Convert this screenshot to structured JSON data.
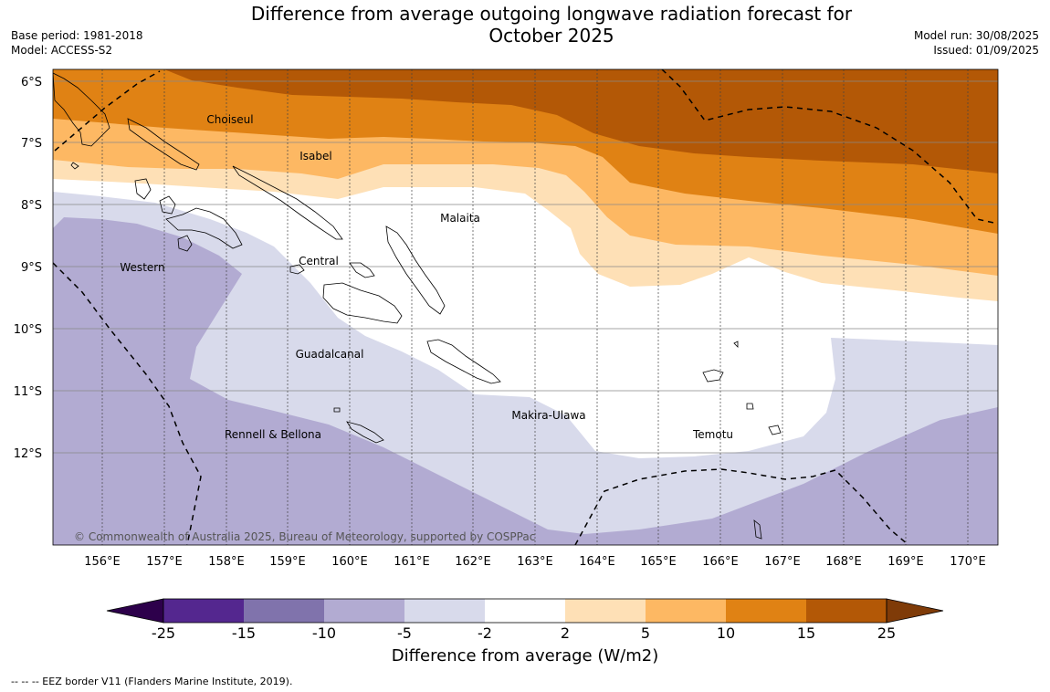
{
  "header": {
    "title_line1": "Difference from average outgoing longwave radiation forecast for",
    "title_line2": "October 2025",
    "base_period": "Base period: 1981-2018",
    "model": "Model: ACCESS-S2",
    "model_run": "Model run: 30/08/2025",
    "issued": "Issued: 01/09/2025"
  },
  "map": {
    "lat_labels": [
      "6°S",
      "7°S",
      "8°S",
      "9°S",
      "10°S",
      "11°S",
      "12°S"
    ],
    "lon_labels": [
      "156°E",
      "157°E",
      "158°E",
      "159°E",
      "160°E",
      "161°E",
      "162°E",
      "163°E",
      "164°E",
      "165°E",
      "166°E",
      "167°E",
      "168°E",
      "169°E",
      "170°E"
    ],
    "region_labels": [
      "Choiseul",
      "Isabel",
      "Malaita",
      "Western",
      "Central",
      "Guadalcanal",
      "Makira-Ulawa",
      "Temotu",
      "Rennell & Bellona"
    ],
    "copyright": "© Commonwealth of Australia 2025, Bureau of Meteorology, supported by COSPPac"
  },
  "colorbar": {
    "labels": [
      "-25",
      "-15",
      "-10",
      "-5",
      "-2",
      "2",
      "5",
      "10",
      "15",
      "25"
    ],
    "colors": [
      "#54278f",
      "#8073ac",
      "#b2abd2",
      "#d8daeb",
      "#ffffff",
      "#fee0b6",
      "#fdb863",
      "#e08214",
      "#b35806"
    ],
    "under_color": "#2d004b",
    "over_color": "#7f3b08",
    "title": "Difference from average (W/m2)"
  },
  "footnote": "--  --  -- EEZ border V11 (Flanders Marine Institute, 2019)."
}
